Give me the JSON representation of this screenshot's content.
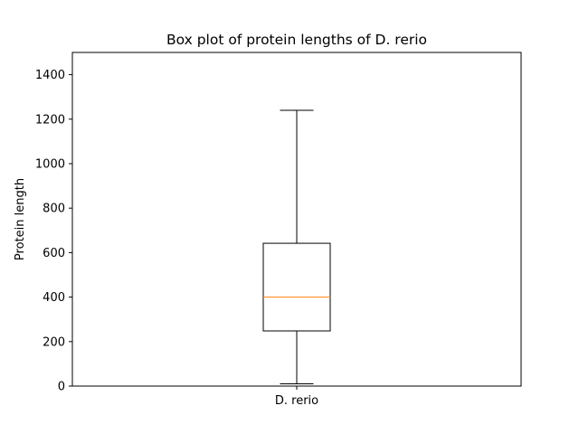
{
  "chart_data": {
    "type": "box",
    "title": "Box plot of protein lengths of D. rerio",
    "xlabel": "",
    "ylabel": "Protein length",
    "ylim": [
      0,
      1500
    ],
    "yticks": [
      0,
      200,
      400,
      600,
      800,
      1000,
      1200,
      1400
    ],
    "grid": false,
    "categories": [
      "D. rerio"
    ],
    "boxes": [
      {
        "category": "D. rerio",
        "whisker_low": 10,
        "q1": 248,
        "median": 400,
        "q3": 642,
        "whisker_high": 1240
      }
    ],
    "colors": {
      "box": "#000000",
      "median": "#ff7f0e",
      "axes": "#000000"
    }
  }
}
